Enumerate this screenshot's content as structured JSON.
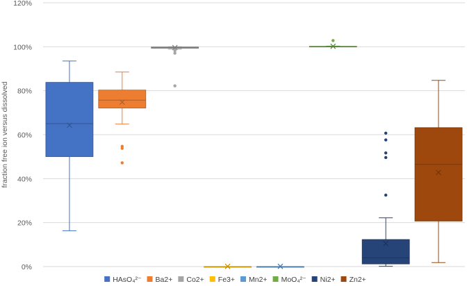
{
  "chart_data": {
    "type": "box",
    "ylabel": "fraction free ion versus dissolved",
    "ylim": [
      0,
      1.2
    ],
    "yticks": [
      0,
      0.2,
      0.4,
      0.6,
      0.8,
      1.0,
      1.2
    ],
    "ytick_labels": [
      "0%",
      "20%",
      "40%",
      "60%",
      "80%",
      "100%",
      "120%"
    ],
    "grid": true,
    "legend_position": "bottom",
    "series": [
      {
        "name": "HAsO₄²⁻",
        "color": "#4472C4",
        "min": 0.163,
        "q1": 0.5,
        "median": 0.65,
        "q3": 0.838,
        "max": 0.935,
        "mean": 0.643,
        "outliers": []
      },
      {
        "name": "Ba2+",
        "color": "#ED7D31",
        "min": 0.648,
        "q1": 0.721,
        "median": 0.757,
        "q3": 0.803,
        "max": 0.885,
        "mean": 0.748,
        "outliers": [
          0.547,
          0.538,
          0.472
        ]
      },
      {
        "name": "Co2+",
        "color": "#A5A5A5",
        "min": 0.989,
        "q1": 0.993,
        "median": 0.996,
        "q3": 0.999,
        "max": 1.0,
        "mean": 0.996,
        "outliers": [
          0.982,
          0.971,
          0.822
        ]
      },
      {
        "name": "Fe3+",
        "color": "#FFC000",
        "min": 0.0,
        "q1": 0.0,
        "median": 0.0,
        "q3": 0.0,
        "max": 0.0,
        "mean": 0.001,
        "outliers": []
      },
      {
        "name": "Mn2+",
        "color": "#5B9BD5",
        "min": 0.0,
        "q1": 0.0,
        "median": 0.0,
        "q3": 0.0,
        "max": 0.0,
        "mean": 0.001,
        "outliers": []
      },
      {
        "name": "MoO₄²⁻",
        "color": "#70AD47",
        "min": 1.0,
        "q1": 1.0,
        "median": 1.0,
        "q3": 1.002,
        "max": 1.003,
        "mean": 1.002,
        "outliers": [
          1.028
        ]
      },
      {
        "name": "Ni2+",
        "color": "#264478",
        "min": 0.001,
        "q1": 0.012,
        "median": 0.04,
        "q3": 0.123,
        "max": 0.222,
        "mean": 0.105,
        "outliers": [
          0.607,
          0.576,
          0.517,
          0.496,
          0.325
        ]
      },
      {
        "name": "Zn2+",
        "color": "#9E480E",
        "min": 0.018,
        "q1": 0.207,
        "median": 0.465,
        "q3": 0.632,
        "max": 0.847,
        "mean": 0.428,
        "outliers": []
      }
    ]
  }
}
